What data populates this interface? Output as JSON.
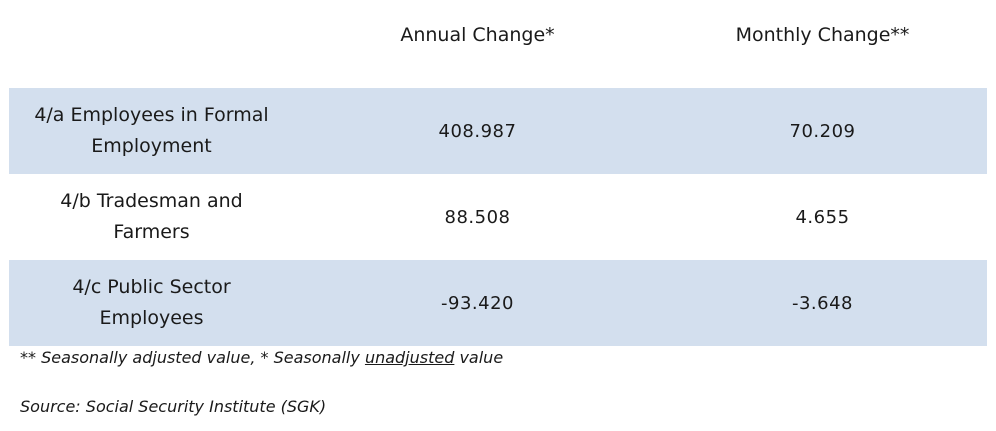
{
  "chart_data": {
    "type": "table",
    "columns": [
      "",
      "Annual Change*",
      "Monthly Change**"
    ],
    "rows": [
      {
        "label": "4/a Employees in Formal Employment",
        "annual": "408.987",
        "monthly": "70.209"
      },
      {
        "label": "4/b Tradesman and Farmers",
        "annual": "88.508",
        "monthly": "4.655"
      },
      {
        "label": "4/c Public Sector Employees",
        "annual": "-93.420",
        "monthly": "-3.648"
      }
    ],
    "footnote": {
      "part1": "** Seasonally adjusted value, *  Seasonally ",
      "underlined": "unadjusted",
      "part2": " value"
    },
    "source": "Source: Social Security Institute (SGK)",
    "shade_color": "#d3dfee"
  }
}
